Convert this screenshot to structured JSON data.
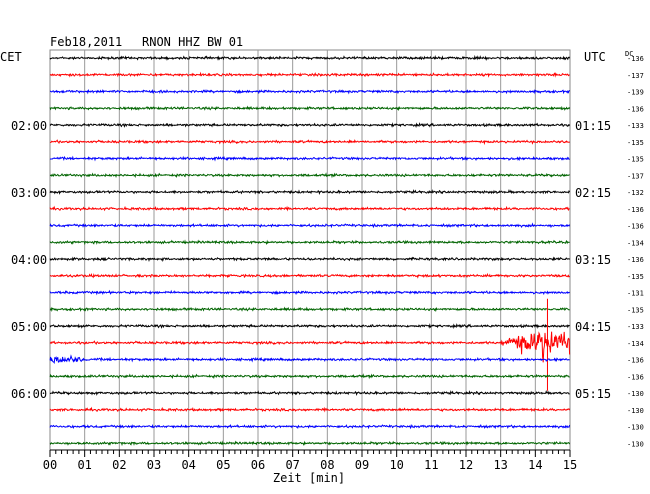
{
  "header": {
    "date": "Feb18,2011",
    "station": "RNON HHZ BW 01",
    "left_zone": "CET",
    "right_zone": "UTC",
    "dc_label": "DC"
  },
  "colors": {
    "cycle": [
      "#000000",
      "#ff0000",
      "#0000ff",
      "#006400"
    ]
  },
  "chart_data": {
    "type": "line",
    "title": "Feb18,2011   RNON HHZ BW 01",
    "xlabel": "Zeit [min]",
    "xlim": [
      0,
      15
    ],
    "x_ticks": [
      "00",
      "01",
      "02",
      "03",
      "04",
      "05",
      "06",
      "07",
      "08",
      "09",
      "10",
      "11",
      "12",
      "13",
      "14",
      "15"
    ],
    "grid": true,
    "cet_labels": [
      {
        "row": 4,
        "text": "02:00"
      },
      {
        "row": 8,
        "text": "03:00"
      },
      {
        "row": 12,
        "text": "04:00"
      },
      {
        "row": 16,
        "text": "05:00"
      },
      {
        "row": 20,
        "text": "06:00"
      }
    ],
    "utc_labels": [
      {
        "row": 4,
        "text": "01:15"
      },
      {
        "row": 8,
        "text": "02:15"
      },
      {
        "row": 12,
        "text": "03:15"
      },
      {
        "row": 16,
        "text": "04:15"
      },
      {
        "row": 20,
        "text": "05:15"
      }
    ],
    "dc_offsets": [
      -136,
      -137,
      -139,
      -136,
      -133,
      -135,
      -135,
      -137,
      -132,
      -136,
      -136,
      -134,
      -136,
      -135,
      -131,
      -135,
      -133,
      -134,
      -136,
      -136,
      -130,
      -130,
      -130,
      -130
    ],
    "events": [
      {
        "row": 17,
        "x_start": 13.0,
        "x_end": 15.0,
        "peak_x": 14.3,
        "relative_amplitude": 1.0
      },
      {
        "row": 18,
        "x_start": 0.0,
        "x_end": 1.0,
        "peak_x": 0.2,
        "relative_amplitude": 0.3
      }
    ]
  }
}
